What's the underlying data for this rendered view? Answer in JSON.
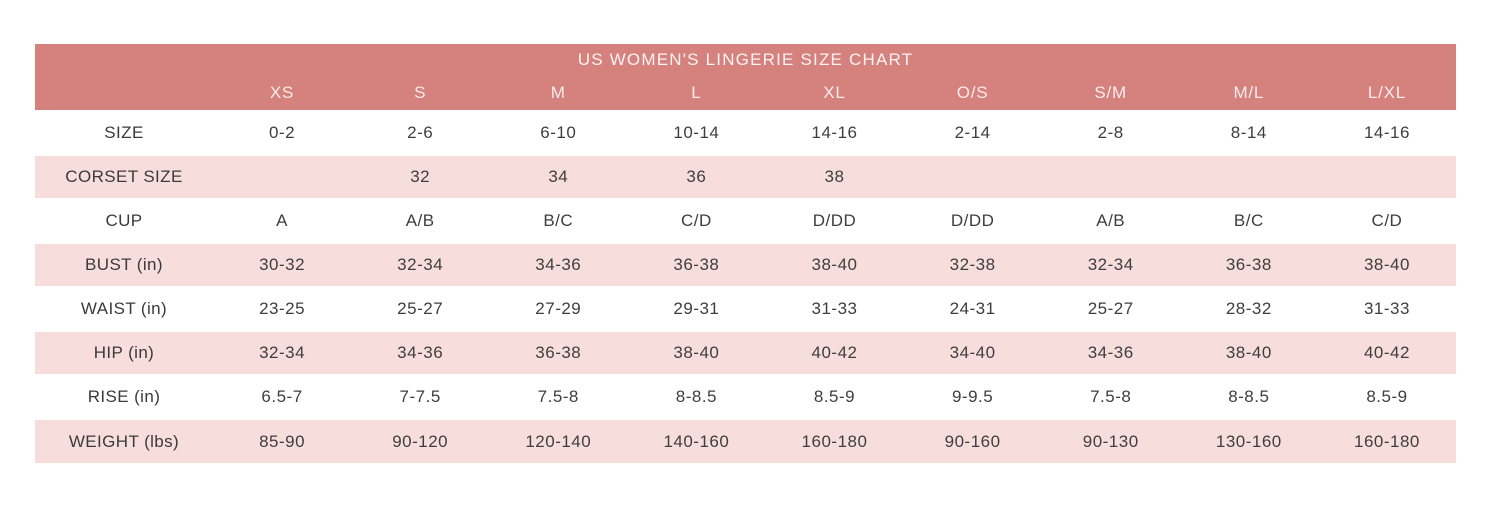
{
  "colors": {
    "header_bg": "#d5817d",
    "header_text": "#fbeceb",
    "stripe_pink": "#f7dedd",
    "stripe_white": "#ffffff",
    "body_text": "#3e3e3e"
  },
  "chart_data": {
    "type": "table",
    "title": "US WOMEN'S LINGERIE SIZE CHART",
    "columns": [
      "XS",
      "S",
      "M",
      "L",
      "XL",
      "O/S",
      "S/M",
      "M/L",
      "L/XL"
    ],
    "rows": [
      {
        "label": "SIZE",
        "values": [
          "0-2",
          "2-6",
          "6-10",
          "10-14",
          "14-16",
          "2-14",
          "2-8",
          "8-14",
          "14-16"
        ]
      },
      {
        "label": "CORSET SIZE",
        "values": [
          "",
          "32",
          "34",
          "36",
          "38",
          "",
          "",
          "",
          ""
        ]
      },
      {
        "label": "CUP",
        "values": [
          "A",
          "A/B",
          "B/C",
          "C/D",
          "D/DD",
          "D/DD",
          "A/B",
          "B/C",
          "C/D"
        ]
      },
      {
        "label": "BUST (in)",
        "values": [
          "30-32",
          "32-34",
          "34-36",
          "36-38",
          "38-40",
          "32-38",
          "32-34",
          "36-38",
          "38-40"
        ]
      },
      {
        "label": "WAIST (in)",
        "values": [
          "23-25",
          "25-27",
          "27-29",
          "29-31",
          "31-33",
          "24-31",
          "25-27",
          "28-32",
          "31-33"
        ]
      },
      {
        "label": "HIP (in)",
        "values": [
          "32-34",
          "34-36",
          "36-38",
          "38-40",
          "40-42",
          "34-40",
          "34-36",
          "38-40",
          "40-42"
        ]
      },
      {
        "label": "RISE (in)",
        "values": [
          "6.5-7",
          "7-7.5",
          "7.5-8",
          "8-8.5",
          "8.5-9",
          "9-9.5",
          "7.5-8",
          "8-8.5",
          "8.5-9"
        ]
      },
      {
        "label": "WEIGHT (lbs)",
        "values": [
          "85-90",
          "90-120",
          "120-140",
          "140-160",
          "160-180",
          "90-160",
          "90-130",
          "130-160",
          "160-180"
        ]
      }
    ],
    "layout": {
      "striping": "rows alternate white/pink starting with white",
      "header_row": "size abbreviations on salmon background",
      "first_column": "measurement labels"
    }
  }
}
